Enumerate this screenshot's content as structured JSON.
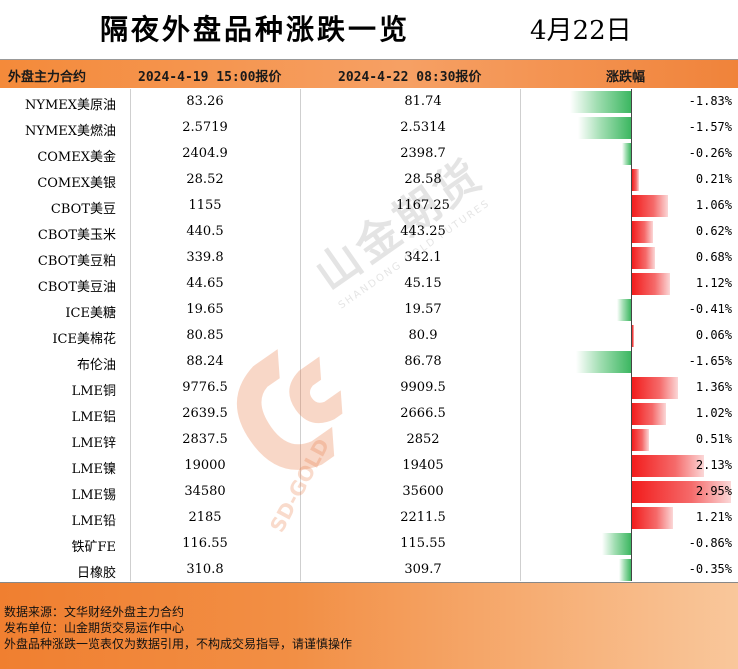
{
  "title": "隔夜外盘品种涨跌一览",
  "date": "4月22日",
  "headers": {
    "name": "外盘主力合约",
    "prev": "2024-4-19 15:00报价",
    "curr": "2024-4-22 08:30报价",
    "chg": "涨跌幅"
  },
  "rows": [
    {
      "name": "NYMEX美原油",
      "prev": "83.26",
      "curr": "81.74",
      "pct": "-1.83%",
      "value": -1.83
    },
    {
      "name": "NYMEX美燃油",
      "prev": "2.5719",
      "curr": "2.5314",
      "pct": "-1.57%",
      "value": -1.57
    },
    {
      "name": "COMEX美金",
      "prev": "2404.9",
      "curr": "2398.7",
      "pct": "-0.26%",
      "value": -0.26
    },
    {
      "name": "COMEX美银",
      "prev": "28.52",
      "curr": "28.58",
      "pct": "0.21%",
      "value": 0.21
    },
    {
      "name": "CBOT美豆",
      "prev": "1155",
      "curr": "1167.25",
      "pct": "1.06%",
      "value": 1.06
    },
    {
      "name": "CBOT美玉米",
      "prev": "440.5",
      "curr": "443.25",
      "pct": "0.62%",
      "value": 0.62
    },
    {
      "name": "CBOT美豆粕",
      "prev": "339.8",
      "curr": "342.1",
      "pct": "0.68%",
      "value": 0.68
    },
    {
      "name": "CBOT美豆油",
      "prev": "44.65",
      "curr": "45.15",
      "pct": "1.12%",
      "value": 1.12
    },
    {
      "name": "ICE美糖",
      "prev": "19.65",
      "curr": "19.57",
      "pct": "-0.41%",
      "value": -0.41
    },
    {
      "name": "ICE美棉花",
      "prev": "80.85",
      "curr": "80.9",
      "pct": "0.06%",
      "value": 0.06
    },
    {
      "name": "布伦油",
      "prev": "88.24",
      "curr": "86.78",
      "pct": "-1.65%",
      "value": -1.65
    },
    {
      "name": "LME铜",
      "prev": "9776.5",
      "curr": "9909.5",
      "pct": "1.36%",
      "value": 1.36
    },
    {
      "name": "LME铝",
      "prev": "2639.5",
      "curr": "2666.5",
      "pct": "1.02%",
      "value": 1.02
    },
    {
      "name": "LME锌",
      "prev": "2837.5",
      "curr": "2852",
      "pct": "0.51%",
      "value": 0.51
    },
    {
      "name": "LME镍",
      "prev": "19000",
      "curr": "19405",
      "pct": "2.13%",
      "value": 2.13
    },
    {
      "name": "LME锡",
      "prev": "34580",
      "curr": "35600",
      "pct": "2.95%",
      "value": 2.95
    },
    {
      "name": "LME铅",
      "prev": "2185",
      "curr": "2211.5",
      "pct": "1.21%",
      "value": 1.21
    },
    {
      "name": "铁矿FE",
      "prev": "116.55",
      "curr": "115.55",
      "pct": "-0.86%",
      "value": -0.86
    },
    {
      "name": "日橡胶",
      "prev": "310.8",
      "curr": "309.7",
      "pct": "-0.35%",
      "value": -0.35
    }
  ],
  "watermark": {
    "brand": "山金期货",
    "en": "SHANDONG GOLD FUTURES",
    "short": "SD-GOLD"
  },
  "footer": {
    "source": "数据来源：文华财经外盘主力合约",
    "publisher": "发布单位：山金期货交易运作中心",
    "disclaimer": "外盘品种涨跌一览表仅为数据引用，不构成交易指导，请谨慎操作"
  },
  "colors": {
    "up": "#f21c1c",
    "down": "#3cb761",
    "accent": "#f28f45"
  }
}
